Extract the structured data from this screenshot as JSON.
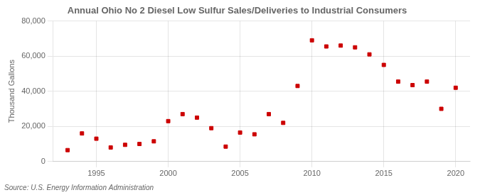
{
  "chart_data": {
    "type": "scatter",
    "title": "Annual Ohio No 2 Diesel Low Sulfur Sales/Deliveries to Industrial Consumers",
    "ylabel": "Thousand Gallons",
    "annotation": "Source: U.S. Energy Information Administration",
    "x": [
      1993,
      1994,
      1995,
      1996,
      1997,
      1998,
      1999,
      2000,
      2001,
      2002,
      2003,
      2004,
      2005,
      2006,
      2007,
      2008,
      2009,
      2010,
      2011,
      2012,
      2013,
      2014,
      2015,
      2016,
      2017,
      2018,
      2019,
      2020
    ],
    "values": [
      6500,
      16000,
      13000,
      8000,
      9500,
      10000,
      11500,
      23000,
      27000,
      25000,
      19000,
      8500,
      16500,
      15500,
      27000,
      22000,
      43000,
      69000,
      65500,
      66000,
      65000,
      61000,
      55000,
      45500,
      43500,
      45500,
      30000,
      42000
    ],
    "color": "#cc0000",
    "marker": "square",
    "xlim": [
      1992,
      2021
    ],
    "xticks": [
      1995,
      2000,
      2005,
      2010,
      2015,
      2020
    ],
    "ylim": [
      0,
      80000
    ],
    "yticks": [
      0,
      {
        "value": 20000,
        "label": "20,000"
      },
      {
        "value": 40000,
        "label": "40,000"
      },
      {
        "value": 60000,
        "label": "60,000"
      },
      {
        "value": 80000,
        "label": "80,000"
      }
    ],
    "grid": true
  }
}
